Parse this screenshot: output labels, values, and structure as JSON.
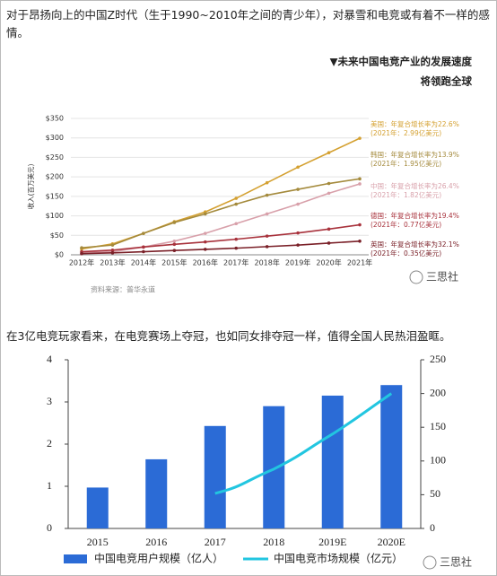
{
  "paragraphs": [
    "对于昂扬向上的中国Z时代（生于1990~2010年之间的青少年），对暴雪和电竞或有着不一样的感情。",
    "在3亿电竞玩家看来，在电竞赛场上夺冠，也如同女排夺冠一样，值得全国人民热泪盈眶。"
  ],
  "watermarks": [
    "三思社",
    "三思社"
  ],
  "chart_data": [
    {
      "type": "line",
      "title": "▼未来中国电竞产业的发展速度",
      "subtitle": "将领跑全球",
      "ylabel": "收入(百万美元)",
      "source": "资料来源：普华永道",
      "categories": [
        "2012年",
        "2013年",
        "2014年",
        "2015年",
        "2016年",
        "2017年",
        "2018年",
        "2019年",
        "2020年",
        "2021年"
      ],
      "ylim": [
        0,
        350
      ],
      "yticks": [
        {
          "value": 0,
          "label": "$0"
        },
        {
          "value": 50,
          "label": "$50"
        },
        {
          "value": 100,
          "label": "$100"
        },
        {
          "value": 150,
          "label": "$150"
        },
        {
          "value": 200,
          "label": "$200"
        },
        {
          "value": 250,
          "label": "$250"
        },
        {
          "value": 300,
          "label": "$300"
        },
        {
          "value": 350,
          "label": "$350"
        }
      ],
      "grid": true,
      "series": [
        {
          "name": "美国：年复合增长率为22.6%",
          "note": "(2021年：2.99亿美元)",
          "color": "#d4a030",
          "values": [
            15,
            28,
            55,
            85,
            110,
            145,
            185,
            225,
            262,
            299
          ]
        },
        {
          "name": "韩国：年复合增长率为13.9%",
          "note": "(2021年：1.95亿美元)",
          "color": "#a48a3c",
          "values": [
            18,
            25,
            55,
            83,
            105,
            130,
            153,
            168,
            183,
            195
          ]
        },
        {
          "name": "中国：年复合增长率为26.4%",
          "note": "(2021年：1.82亿美元)",
          "color": "#d8a0aa",
          "values": [
            5,
            8,
            20,
            35,
            55,
            80,
            105,
            130,
            158,
            182
          ]
        },
        {
          "name": "德国：年复合增长率为19.4%",
          "note": "(2021年：0.77亿美元)",
          "color": "#a8323c",
          "values": [
            8,
            12,
            20,
            27,
            33,
            40,
            48,
            56,
            66,
            77
          ]
        },
        {
          "name": "英国：年复合增长率为32.1%",
          "note": "(2021年：0.35亿美元)",
          "color": "#7a2028",
          "values": [
            3,
            5,
            8,
            11,
            14,
            17,
            21,
            25,
            30,
            35
          ]
        }
      ]
    },
    {
      "type": "bar",
      "categories": [
        "2015",
        "2016",
        "2017",
        "2018",
        "2019E",
        "2020E"
      ],
      "ylim": [
        0,
        4
      ],
      "yticks": [
        0,
        1,
        2,
        3,
        4
      ],
      "y2lim": [
        0,
        250
      ],
      "y2ticks": [
        0,
        50,
        100,
        150,
        200,
        250
      ],
      "series": [
        {
          "name": "中国电竞用户规模（亿人）",
          "type": "bar",
          "color": "#2b6bd6",
          "values": [
            0.97,
            1.64,
            2.43,
            2.9,
            3.15,
            3.4
          ]
        },
        {
          "name": "中国电竞市场规模（亿元）",
          "type": "line",
          "axis": "y2",
          "color": "#22c6e0",
          "values": [
            null,
            null,
            52,
            88,
            140,
            200
          ]
        }
      ]
    }
  ]
}
